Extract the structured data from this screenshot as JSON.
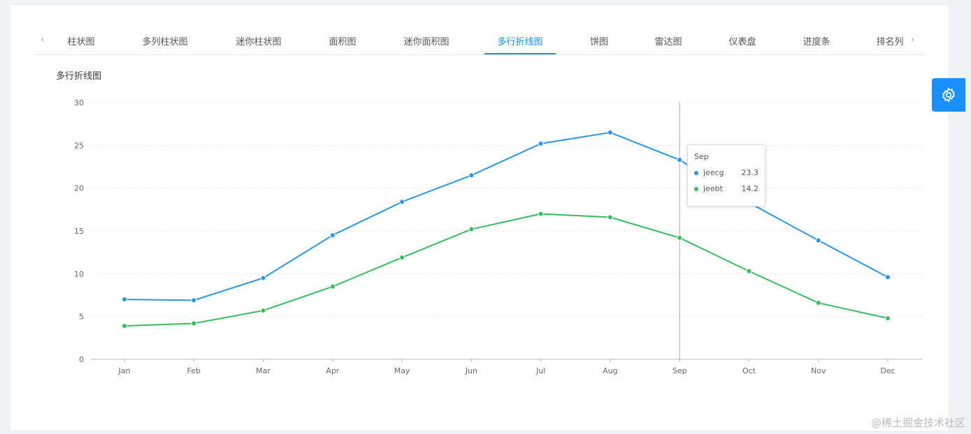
{
  "tabs": [
    "柱状图",
    "多列柱状图",
    "迷你柱状图",
    "面积图",
    "迷你面积图",
    "多行折线图",
    "饼图",
    "雷达图",
    "仪表盘",
    "进度条",
    "排名列"
  ],
  "active_tab": 5,
  "chart_title": "多行折线图",
  "tooltip": {
    "label": "Sep",
    "rows": [
      {
        "name": "jeecg",
        "value": "23.3"
      },
      {
        "name": "jeebt",
        "value": "14.2"
      }
    ]
  },
  "watermark": "@稀土掘金技术社区",
  "colors": {
    "accent": "#1890ff",
    "jeecg": "#2b95e8",
    "jeebt": "#35bd5c"
  },
  "chart_data": {
    "type": "line",
    "categories": [
      "Jan",
      "Feb",
      "Mar",
      "Apr",
      "May",
      "Jun",
      "Jul",
      "Aug",
      "Sep",
      "Oct",
      "Nov",
      "Dec"
    ],
    "series": [
      {
        "name": "jeecg",
        "values": [
          7.0,
          6.9,
          9.5,
          14.5,
          18.4,
          21.5,
          25.2,
          26.5,
          23.3,
          18.3,
          13.9,
          9.6
        ]
      },
      {
        "name": "jeebt",
        "values": [
          3.9,
          4.2,
          5.7,
          8.5,
          11.9,
          15.2,
          17.0,
          16.6,
          14.2,
          10.3,
          6.6,
          4.8
        ]
      }
    ],
    "ylim": [
      0,
      30
    ],
    "yticks": [
      "0",
      "5",
      "10",
      "15",
      "20",
      "25",
      "30"
    ],
    "grid": true,
    "crosshair": "Sep"
  }
}
